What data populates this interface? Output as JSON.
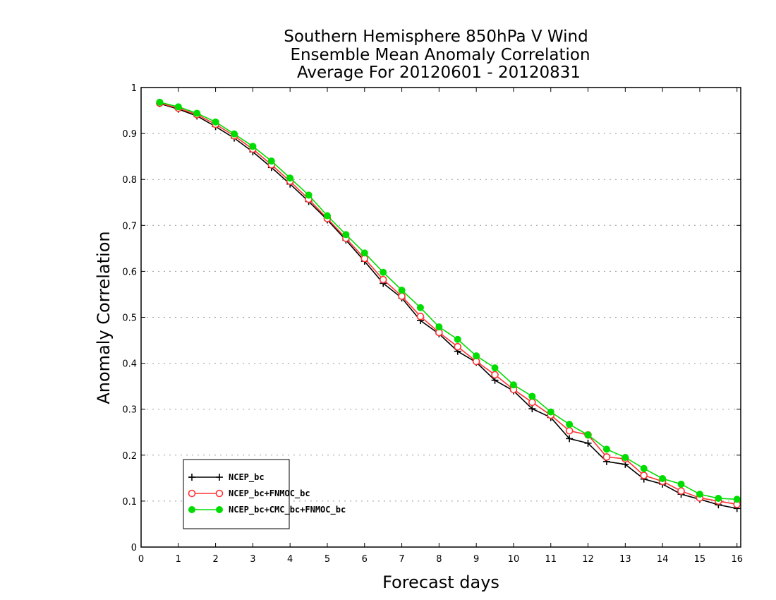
{
  "chart_data": {
    "type": "line",
    "title_lines": [
      "Southern Hemisphere 850hPa V Wind",
      "Ensemble Mean Anomaly Correlation",
      "Average For 20120601 - 20120831"
    ],
    "xlabel": "Forecast days",
    "ylabel": "Anomaly Correlation",
    "xlim": [
      0,
      16.1
    ],
    "ylim": [
      0,
      1
    ],
    "x_ticks": [
      0,
      1,
      2,
      3,
      4,
      5,
      6,
      7,
      8,
      9,
      10,
      11,
      12,
      13,
      14,
      15,
      16
    ],
    "y_ticks": [
      0,
      0.1,
      0.2,
      0.3,
      0.4,
      0.5,
      0.6,
      0.7,
      0.8,
      0.9,
      1
    ],
    "grid": "horizontal-dotted",
    "legend_position": "bottom-left",
    "x": [
      0.5,
      1,
      1.5,
      2,
      2.5,
      3,
      3.5,
      4,
      4.5,
      5,
      5.5,
      6,
      6.5,
      7,
      7.5,
      8,
      8.5,
      9,
      9.5,
      10,
      10.5,
      11,
      11.5,
      12,
      12.5,
      13,
      13.5,
      14,
      14.5,
      15,
      15.5,
      16
    ],
    "series": [
      {
        "name": "NCEP_bc",
        "color": "#000000",
        "marker": "plus",
        "values": [
          0.965,
          0.953,
          0.938,
          0.915,
          0.89,
          0.86,
          0.826,
          0.79,
          0.752,
          0.712,
          0.668,
          0.622,
          0.574,
          0.542,
          0.493,
          0.464,
          0.426,
          0.402,
          0.363,
          0.34,
          0.301,
          0.282,
          0.236,
          0.226,
          0.186,
          0.18,
          0.148,
          0.137,
          0.115,
          0.104,
          0.092,
          0.084
        ]
      },
      {
        "name": "NCEP_bc+FNMOC_bc",
        "color": "#ff3333",
        "marker": "open-circle",
        "values": [
          0.966,
          0.955,
          0.941,
          0.92,
          0.895,
          0.866,
          0.832,
          0.796,
          0.757,
          0.715,
          0.672,
          0.628,
          0.582,
          0.546,
          0.502,
          0.467,
          0.436,
          0.404,
          0.375,
          0.343,
          0.315,
          0.287,
          0.253,
          0.244,
          0.196,
          0.192,
          0.156,
          0.143,
          0.122,
          0.107,
          0.1,
          0.093
        ]
      },
      {
        "name": "NCEP_bc+CMC_bc+FNMOC_bc",
        "color": "#00dd00",
        "marker": "filled-circle",
        "values": [
          0.968,
          0.958,
          0.944,
          0.925,
          0.899,
          0.872,
          0.84,
          0.803,
          0.766,
          0.721,
          0.68,
          0.64,
          0.598,
          0.559,
          0.521,
          0.479,
          0.452,
          0.416,
          0.39,
          0.353,
          0.328,
          0.294,
          0.267,
          0.244,
          0.213,
          0.195,
          0.171,
          0.149,
          0.137,
          0.115,
          0.106,
          0.104
        ]
      }
    ]
  }
}
